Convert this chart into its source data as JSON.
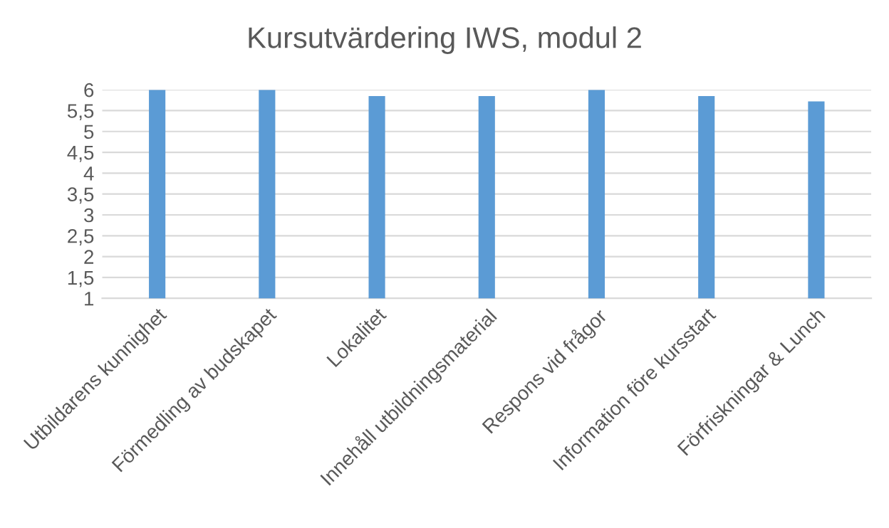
{
  "chart_data": {
    "type": "bar",
    "title": "Kursutvärdering IWS, modul 2",
    "categories": [
      "Utbildarens kunnighet",
      "Förmedling av budskapet",
      "Lokalitet",
      "Innehåll utbildningsmaterial",
      "Respons vid frågor",
      "Information före kursstart",
      "Förfriskningar & Lunch"
    ],
    "values": [
      6,
      6,
      5.85,
      5.85,
      6,
      5.85,
      5.72
    ],
    "color": "#5b9bd5",
    "ylim": [
      1,
      6
    ],
    "yticks": [
      1,
      {
        "value": 1.5,
        "label": "1,5"
      },
      2,
      {
        "value": 2.5,
        "label": "2,5"
      },
      3,
      {
        "value": 3.5,
        "label": "3,5"
      },
      4,
      {
        "value": 4.5,
        "label": "4,5"
      },
      5,
      {
        "value": 5.5,
        "label": "5,5"
      },
      6
    ],
    "grid": "y"
  }
}
